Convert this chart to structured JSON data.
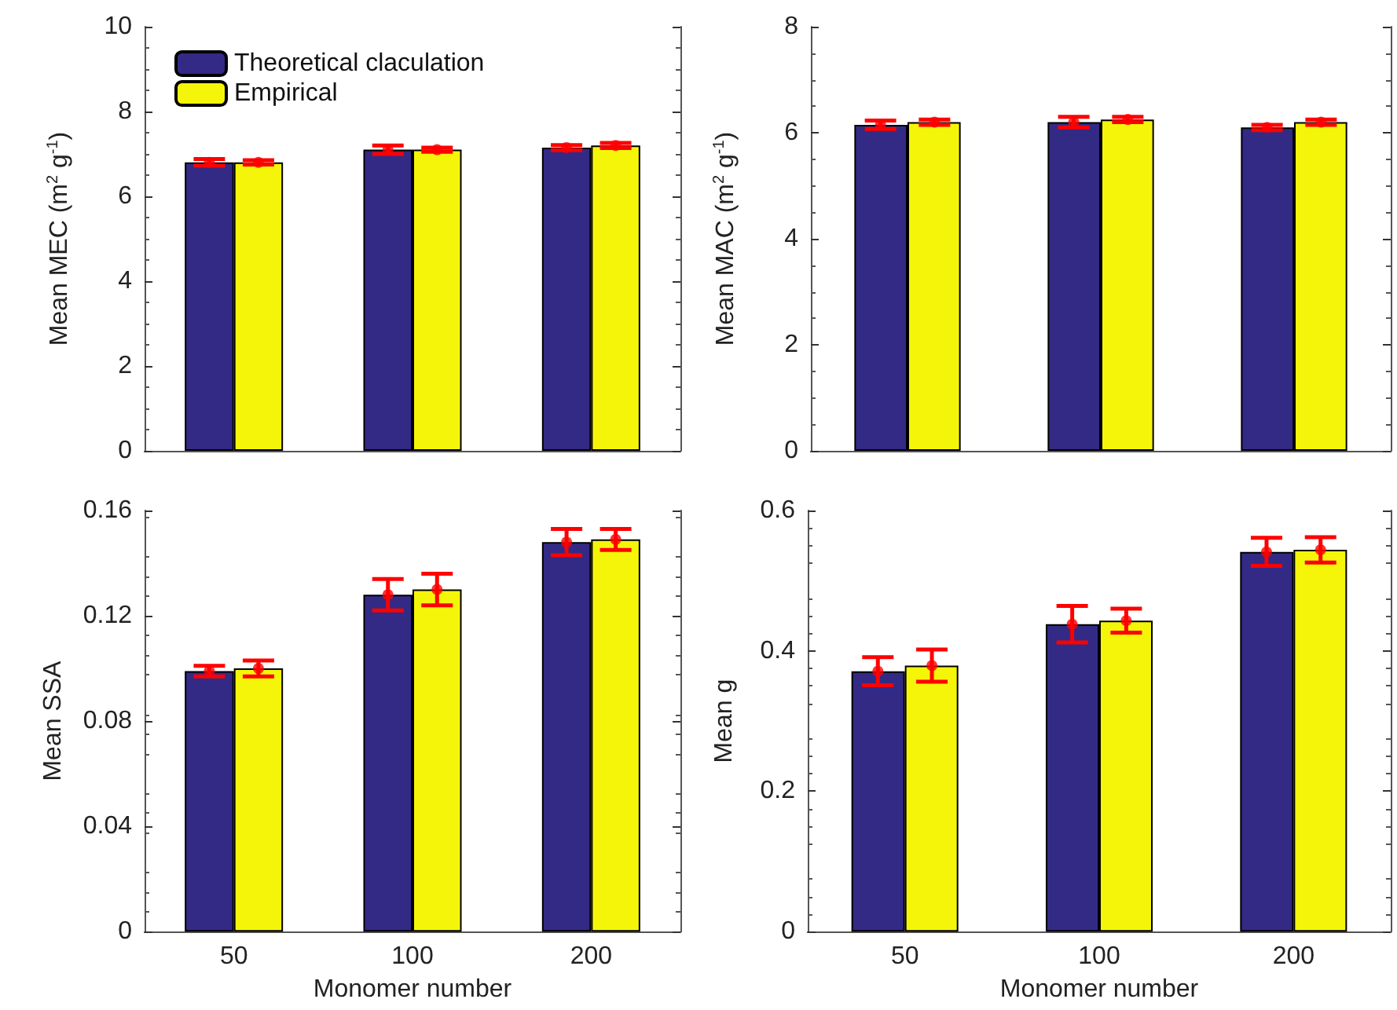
{
  "chart_data": [
    {
      "type": "bar",
      "ylabel": "Mean MEC (m$^{2}$ g$^{-1}$)",
      "categories": [
        "50",
        "100",
        "200"
      ],
      "ylim": [
        0,
        10
      ],
      "yticks": [
        0,
        2,
        4,
        6,
        8,
        10
      ],
      "tick_labels": "y",
      "legend": "top left",
      "grid": false,
      "series": [
        {
          "name": "Theoretical claculation",
          "color": "#332a85",
          "values": [
            6.8,
            7.1,
            7.15
          ]
        },
        {
          "name": "Empirical",
          "color": "#f5f50a",
          "values": [
            6.8,
            7.1,
            7.2
          ]
        },
        {
          "type": "scatter",
          "color": "#ff0000",
          "marker": "circle",
          "x": [
            "50",
            "100",
            "200"
          ],
          "values": [
            6.8,
            7.1,
            7.15
          ],
          "errors": [
            0.08,
            0.1,
            0.06
          ]
        },
        {
          "type": "scatter",
          "color": "#ff0000",
          "marker": "circle",
          "x": [
            "50",
            "100",
            "200"
          ],
          "values": [
            6.8,
            7.1,
            7.2
          ],
          "errors": [
            0.05,
            0.05,
            0.06
          ]
        }
      ]
    },
    {
      "type": "bar",
      "ylabel": "Mean MAC (m$^{2}$ g$^{-1}$)",
      "categories": [
        "50",
        "100",
        "200"
      ],
      "ylim": [
        0,
        8
      ],
      "yticks": [
        0,
        2,
        4,
        6,
        8
      ],
      "tick_labels": "y",
      "legend": false,
      "grid": false,
      "series": [
        {
          "color": "#332a85",
          "values": [
            6.15,
            6.2,
            6.1
          ]
        },
        {
          "color": "#f5f50a",
          "values": [
            6.2,
            6.25,
            6.2
          ]
        },
        {
          "type": "scatter",
          "color": "#ff0000",
          "marker": "circle",
          "x": [
            "50",
            "100",
            "200"
          ],
          "values": [
            6.15,
            6.2,
            6.1
          ],
          "errors": [
            0.08,
            0.1,
            0.05
          ]
        },
        {
          "type": "scatter",
          "color": "#ff0000",
          "marker": "circle",
          "x": [
            "50",
            "100",
            "200"
          ],
          "values": [
            6.2,
            6.25,
            6.2
          ],
          "errors": [
            0.05,
            0.05,
            0.05
          ]
        }
      ]
    },
    {
      "type": "bar",
      "xlabel": "Monomer number",
      "ylabel": "Mean SSA",
      "categories": [
        "50",
        "100",
        "200"
      ],
      "ylim": [
        0,
        0.16
      ],
      "yticks": [
        0,
        0.04,
        0.08,
        0.12,
        0.16
      ],
      "legend": false,
      "grid": false,
      "series": [
        {
          "color": "#332a85",
          "values": [
            0.099,
            0.128,
            0.148
          ]
        },
        {
          "color": "#f5f50a",
          "values": [
            0.1,
            0.13,
            0.149
          ]
        },
        {
          "type": "scatter",
          "color": "#ff0000",
          "marker": "circle",
          "x": [
            "50",
            "100",
            "200"
          ],
          "values": [
            0.099,
            0.128,
            0.148
          ],
          "errors": [
            0.002,
            0.006,
            0.005
          ]
        },
        {
          "type": "scatter",
          "color": "#ff0000",
          "marker": "circle",
          "x": [
            "50",
            "100",
            "200"
          ],
          "values": [
            0.1,
            0.13,
            0.149
          ],
          "errors": [
            0.003,
            0.006,
            0.004
          ]
        }
      ]
    },
    {
      "type": "bar",
      "xlabel": "Monomer number",
      "ylabel": "Mean g",
      "categories": [
        "50",
        "100",
        "200"
      ],
      "ylim": [
        0,
        0.6
      ],
      "yticks": [
        0,
        0.2,
        0.4,
        0.6
      ],
      "legend": false,
      "grid": false,
      "series": [
        {
          "color": "#332a85",
          "values": [
            0.371,
            0.438,
            0.541
          ]
        },
        {
          "color": "#f5f50a",
          "values": [
            0.379,
            0.443,
            0.544
          ]
        },
        {
          "type": "scatter",
          "color": "#ff0000",
          "marker": "circle",
          "x": [
            "50",
            "100",
            "200"
          ],
          "values": [
            0.371,
            0.438,
            0.541
          ],
          "errors": [
            0.02,
            0.026,
            0.02
          ]
        },
        {
          "type": "scatter",
          "color": "#ff0000",
          "marker": "circle",
          "x": [
            "50",
            "100",
            "200"
          ],
          "values": [
            0.379,
            0.443,
            0.544
          ],
          "errors": [
            0.023,
            0.017,
            0.018
          ]
        }
      ]
    }
  ]
}
